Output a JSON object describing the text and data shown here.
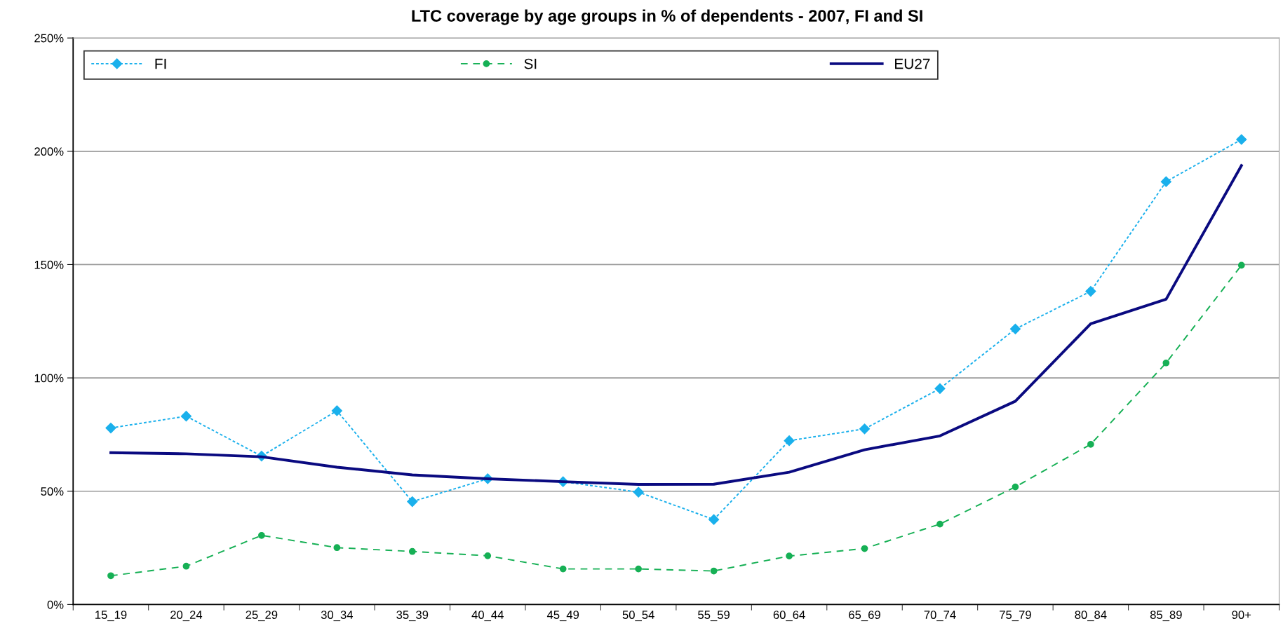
{
  "chart_data": {
    "type": "line",
    "title": "LTC coverage by age groups in % of dependents - 2007, FI and SI",
    "categories": [
      "15_19",
      "20_24",
      "25_29",
      "30_34",
      "35_39",
      "40_44",
      "45_49",
      "50_54",
      "55_59",
      "60_64",
      "65_69",
      "70_74",
      "75_79",
      "80_84",
      "85_89",
      "90+"
    ],
    "series": [
      {
        "name": "FI",
        "color": "#1ab0ec",
        "marker": "diamond",
        "line_style": "dotted",
        "values": [
          77.9,
          83.1,
          65.5,
          85.5,
          45.4,
          55.5,
          54.2,
          49.6,
          37.5,
          72.3,
          77.5,
          95.3,
          121.6,
          138.2,
          186.6,
          205.2
        ]
      },
      {
        "name": "SI",
        "color": "#16b055",
        "marker": "circle",
        "line_style": "dashed",
        "values": [
          12.7,
          16.9,
          30.5,
          25.1,
          23.4,
          21.5,
          15.7,
          15.7,
          14.8,
          21.4,
          24.7,
          35.5,
          51.9,
          70.7,
          106.6,
          149.7
        ]
      },
      {
        "name": "EU27",
        "color": "#0a0a80",
        "marker": "none",
        "line_style": "solid",
        "values": [
          67.0,
          66.5,
          65.2,
          60.6,
          57.2,
          55.5,
          54.2,
          53.0,
          53.1,
          58.4,
          68.3,
          74.4,
          89.7,
          123.9,
          134.7,
          193.7
        ]
      }
    ],
    "ylim": [
      0,
      250
    ],
    "yticks": [
      {
        "value": 0,
        "label": "0%"
      },
      {
        "value": 50,
        "label": "50%"
      },
      {
        "value": 100,
        "label": "100%"
      },
      {
        "value": 150,
        "label": "150%"
      },
      {
        "value": 200,
        "label": "200%"
      },
      {
        "value": 250,
        "label": "250%"
      }
    ],
    "grid": "y",
    "legend": "top"
  }
}
